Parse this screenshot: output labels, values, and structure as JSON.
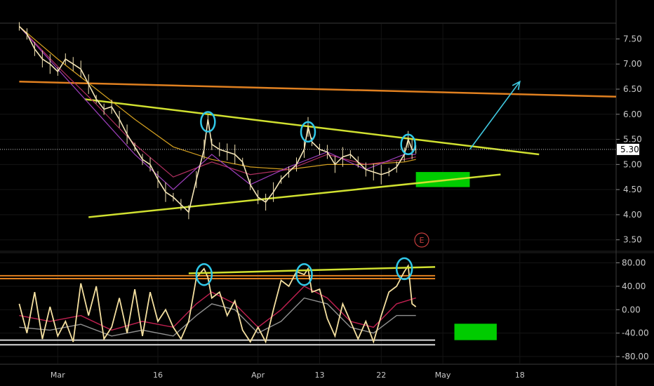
{
  "chart_data": [
    {
      "type": "line",
      "panel": "price",
      "y_ticks": [
        "7.50",
        "7.00",
        "6.50",
        "6.00",
        "5.50",
        "5.00",
        "4.50",
        "4.00",
        "3.50"
      ],
      "y_tick_values": [
        7.5,
        7.0,
        6.5,
        6.0,
        5.5,
        5.0,
        4.5,
        4.0,
        3.5
      ],
      "ylim": [
        3.3,
        7.8
      ],
      "last_price": "5.30",
      "last_value": 5.3,
      "earnings_marker": "E",
      "series": [
        {
          "values": [
            [
              0,
              7.75
            ],
            [
              2,
              7.6
            ],
            [
              4,
              7.3
            ],
            [
              6,
              7.1
            ],
            [
              8,
              7.0
            ],
            [
              10,
              6.85
            ],
            [
              12,
              7.1
            ],
            [
              14,
              7.0
            ],
            [
              16,
              6.9
            ],
            [
              18,
              6.6
            ],
            [
              20,
              6.3
            ],
            [
              22,
              6.1
            ],
            [
              24,
              6.15
            ],
            [
              26,
              5.9
            ],
            [
              28,
              5.6
            ],
            [
              30,
              5.35
            ],
            [
              32,
              5.1
            ],
            [
              34,
              5.0
            ],
            [
              36,
              4.7
            ],
            [
              38,
              4.45
            ],
            [
              40,
              4.35
            ],
            [
              42,
              4.2
            ],
            [
              44,
              4.05
            ],
            [
              46,
              4.7
            ],
            [
              48,
              5.3
            ],
            [
              49,
              5.9
            ],
            [
              50,
              5.4
            ],
            [
              52,
              5.3
            ],
            [
              54,
              5.25
            ],
            [
              56,
              5.2
            ],
            [
              58,
              5.05
            ],
            [
              60,
              4.6
            ],
            [
              62,
              4.35
            ],
            [
              64,
              4.25
            ],
            [
              66,
              4.45
            ],
            [
              68,
              4.7
            ],
            [
              70,
              4.85
            ],
            [
              72,
              5.0
            ],
            [
              74,
              5.3
            ],
            [
              75,
              5.75
            ],
            [
              76,
              5.45
            ],
            [
              78,
              5.3
            ],
            [
              80,
              5.25
            ],
            [
              82,
              5.0
            ],
            [
              84,
              5.15
            ],
            [
              86,
              5.2
            ],
            [
              88,
              5.05
            ],
            [
              90,
              4.9
            ],
            [
              92,
              4.85
            ],
            [
              94,
              4.8
            ],
            [
              96,
              4.85
            ],
            [
              98,
              4.95
            ],
            [
              100,
              5.2
            ],
            [
              101,
              5.5
            ],
            [
              102,
              5.3
            ],
            [
              103,
              5.3
            ]
          ]
        }
      ],
      "moving_averages": [
        {
          "color": "#d4a020",
          "values": [
            [
              0,
              7.75
            ],
            [
              10,
              7.1
            ],
            [
              20,
              6.5
            ],
            [
              30,
              5.9
            ],
            [
              40,
              5.35
            ],
            [
              50,
              5.1
            ],
            [
              60,
              4.95
            ],
            [
              70,
              4.9
            ],
            [
              80,
              5.0
            ],
            [
              90,
              5.0
            ],
            [
              100,
              5.05
            ],
            [
              103,
              5.1
            ]
          ]
        },
        {
          "color": "#b03060",
          "values": [
            [
              0,
              7.75
            ],
            [
              10,
              6.95
            ],
            [
              20,
              6.2
            ],
            [
              30,
              5.4
            ],
            [
              40,
              4.75
            ],
            [
              50,
              5.05
            ],
            [
              60,
              4.8
            ],
            [
              70,
              4.9
            ],
            [
              80,
              5.2
            ],
            [
              90,
              5.0
            ],
            [
              100,
              5.1
            ],
            [
              103,
              5.15
            ]
          ]
        },
        {
          "color": "#a040c0",
          "values": [
            [
              0,
              7.75
            ],
            [
              10,
              6.9
            ],
            [
              20,
              6.05
            ],
            [
              30,
              5.2
            ],
            [
              40,
              4.5
            ],
            [
              50,
              5.2
            ],
            [
              60,
              4.6
            ],
            [
              70,
              4.95
            ],
            [
              80,
              5.25
            ],
            [
              90,
              4.9
            ],
            [
              100,
              5.2
            ],
            [
              103,
              5.2
            ]
          ]
        }
      ],
      "trend_lines": [
        {
          "color": "#d0e030",
          "from": [
            17,
            6.3
          ],
          "to": [
            135,
            5.2
          ]
        },
        {
          "color": "#d0e030",
          "from": [
            18,
            3.95
          ],
          "to": [
            125,
            4.8
          ]
        },
        {
          "color": "#e08020",
          "from": [
            0,
            6.65
          ],
          "to": [
            155,
            6.35
          ]
        }
      ],
      "forecast_arrow": {
        "color": "#40c8e0",
        "from": [
          117,
          5.3
        ],
        "to": [
          130,
          6.65
        ]
      },
      "target_zone": {
        "color": "#00cc00",
        "x": [
          103,
          117
        ],
        "y": [
          4.55,
          4.85
        ]
      },
      "highlights": [
        {
          "x": 49,
          "y": 5.85
        },
        {
          "x": 75,
          "y": 5.65
        },
        {
          "x": 101,
          "y": 5.4
        }
      ]
    },
    {
      "type": "line",
      "panel": "oscillator",
      "y_ticks": [
        "80.00",
        "40.00",
        "0.00",
        "-40.00",
        "-80.00"
      ],
      "y_tick_values": [
        80,
        40,
        0,
        -40,
        -80
      ],
      "ylim": [
        -92,
        95
      ],
      "series": [
        {
          "color": "#f5e0a0",
          "values": [
            [
              0,
              10
            ],
            [
              2,
              -40
            ],
            [
              4,
              30
            ],
            [
              6,
              -50
            ],
            [
              8,
              5
            ],
            [
              10,
              -45
            ],
            [
              12,
              -20
            ],
            [
              14,
              -55
            ],
            [
              16,
              45
            ],
            [
              18,
              -10
            ],
            [
              20,
              40
            ],
            [
              22,
              -50
            ],
            [
              24,
              -30
            ],
            [
              26,
              20
            ],
            [
              28,
              -40
            ],
            [
              30,
              35
            ],
            [
              32,
              -45
            ],
            [
              34,
              30
            ],
            [
              36,
              -20
            ],
            [
              38,
              0
            ],
            [
              40,
              -30
            ],
            [
              42,
              -50
            ],
            [
              44,
              -20
            ],
            [
              46,
              55
            ],
            [
              48,
              70
            ],
            [
              49,
              55
            ],
            [
              50,
              20
            ],
            [
              52,
              30
            ],
            [
              54,
              -10
            ],
            [
              56,
              15
            ],
            [
              58,
              -35
            ],
            [
              60,
              -55
            ],
            [
              62,
              -30
            ],
            [
              64,
              -55
            ],
            [
              66,
              0
            ],
            [
              68,
              50
            ],
            [
              70,
              40
            ],
            [
              72,
              65
            ],
            [
              74,
              60
            ],
            [
              75,
              70
            ],
            [
              76,
              30
            ],
            [
              78,
              35
            ],
            [
              80,
              -15
            ],
            [
              82,
              -45
            ],
            [
              84,
              10
            ],
            [
              86,
              -20
            ],
            [
              88,
              -50
            ],
            [
              90,
              -20
            ],
            [
              92,
              -55
            ],
            [
              94,
              -10
            ],
            [
              96,
              30
            ],
            [
              98,
              40
            ],
            [
              100,
              65
            ],
            [
              101,
              75
            ],
            [
              102,
              10
            ],
            [
              103,
              5
            ]
          ]
        },
        {
          "color": "#c02050",
          "values": [
            [
              0,
              -10
            ],
            [
              8,
              -20
            ],
            [
              16,
              -10
            ],
            [
              24,
              -35
            ],
            [
              32,
              -20
            ],
            [
              40,
              -30
            ],
            [
              46,
              10
            ],
            [
              50,
              30
            ],
            [
              56,
              10
            ],
            [
              62,
              -30
            ],
            [
              68,
              0
            ],
            [
              74,
              40
            ],
            [
              80,
              20
            ],
            [
              86,
              -20
            ],
            [
              92,
              -30
            ],
            [
              98,
              10
            ],
            [
              103,
              20
            ]
          ]
        },
        {
          "color": "#909090",
          "values": [
            [
              0,
              -30
            ],
            [
              8,
              -35
            ],
            [
              16,
              -25
            ],
            [
              24,
              -45
            ],
            [
              32,
              -35
            ],
            [
              40,
              -45
            ],
            [
              46,
              -10
            ],
            [
              50,
              10
            ],
            [
              56,
              0
            ],
            [
              62,
              -40
            ],
            [
              68,
              -20
            ],
            [
              74,
              20
            ],
            [
              80,
              10
            ],
            [
              86,
              -30
            ],
            [
              92,
              -40
            ],
            [
              98,
              -10
            ],
            [
              103,
              -10
            ]
          ]
        }
      ],
      "reference_lines": [
        {
          "color": "#e08020",
          "value": 58
        },
        {
          "color": "#e08020",
          "value": 53
        },
        {
          "color": "#d8d8d8",
          "value": -52
        },
        {
          "color": "#d8d8d8",
          "value": -60
        }
      ],
      "trend_lines": [
        {
          "color": "#d0e030",
          "from": [
            44,
            62
          ],
          "to": [
            108,
            73
          ]
        }
      ],
      "target_zone": {
        "color": "#00cc00",
        "x": [
          113,
          124
        ],
        "y": [
          -52,
          -24
        ]
      },
      "highlights": [
        {
          "x": 48,
          "y": 60
        },
        {
          "x": 74,
          "y": 60
        },
        {
          "x": 100,
          "y": 70
        }
      ]
    }
  ],
  "x_axis": {
    "labels": [
      "Mar",
      "16",
      "Apr",
      "13",
      "22",
      "May",
      "18"
    ],
    "positions": [
      10,
      36,
      62,
      78,
      94,
      110,
      130
    ],
    "xlim": [
      -5,
      155
    ]
  }
}
